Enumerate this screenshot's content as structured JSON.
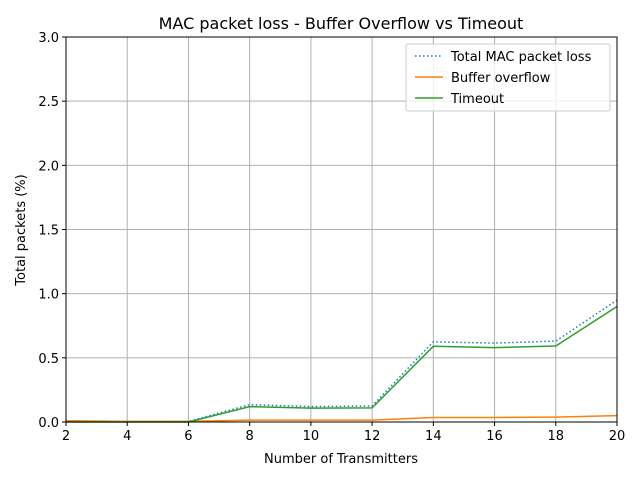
{
  "chart_data": {
    "type": "line",
    "title": "MAC packet loss - Buffer Overflow vs Timeout",
    "xlabel": "Number of Transmitters",
    "ylabel": "Total packets (%)",
    "xlim": [
      2,
      20
    ],
    "ylim": [
      0,
      3.0
    ],
    "xticks": [
      2,
      4,
      6,
      8,
      10,
      12,
      14,
      16,
      18,
      20
    ],
    "yticks": [
      0.0,
      0.5,
      1.0,
      1.5,
      2.0,
      2.5,
      3.0
    ],
    "xtick_labels": [
      "2",
      "4",
      "6",
      "8",
      "10",
      "12",
      "14",
      "16",
      "18",
      "20"
    ],
    "ytick_labels": [
      "0.0",
      "0.5",
      "1.0",
      "1.5",
      "2.0",
      "2.5",
      "3.0"
    ],
    "grid": true,
    "legend_position": "top-right",
    "x": [
      2,
      4,
      6,
      8,
      10,
      12,
      14,
      16,
      18,
      20
    ],
    "series": [
      {
        "name": "Total MAC packet loss",
        "color": "#1f77b4",
        "style": "dotted",
        "values": [
          0.01,
          0.005,
          0.005,
          0.135,
          0.12,
          0.125,
          0.625,
          0.615,
          0.63,
          0.95
        ]
      },
      {
        "name": "Buffer overflow",
        "color": "#ff7f0e",
        "style": "solid",
        "values": [
          0.01,
          0.005,
          0.005,
          0.015,
          0.015,
          0.015,
          0.035,
          0.035,
          0.038,
          0.05
        ]
      },
      {
        "name": "Timeout",
        "color": "#2ca02c",
        "style": "solid",
        "values": [
          0.0,
          0.0,
          0.0,
          0.12,
          0.108,
          0.11,
          0.59,
          0.58,
          0.592,
          0.9
        ]
      }
    ]
  }
}
